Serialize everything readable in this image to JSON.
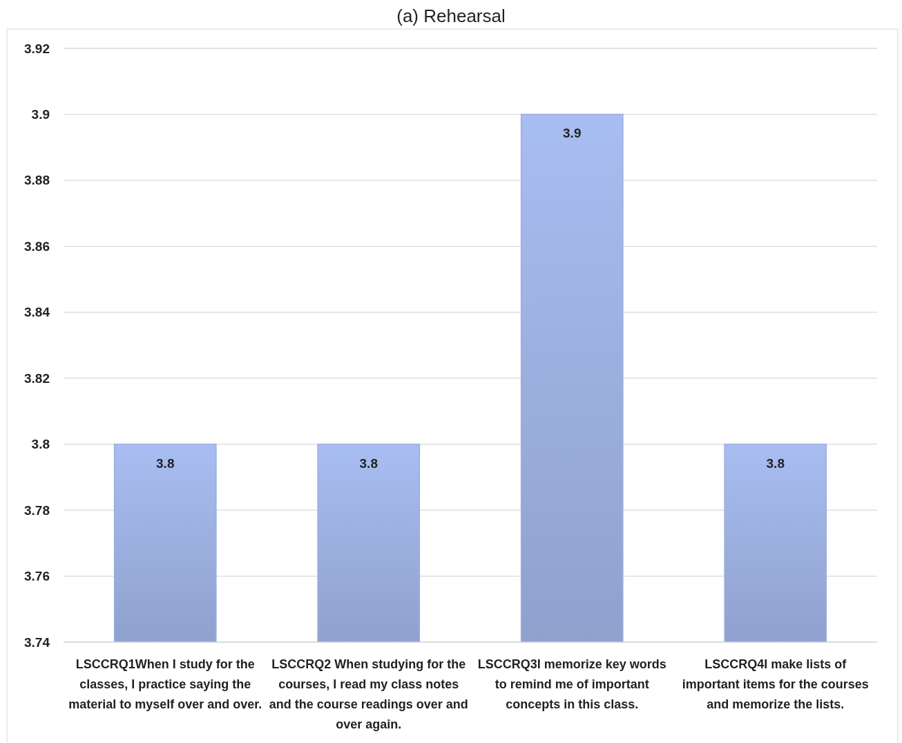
{
  "chart_data": {
    "type": "bar",
    "title": "(a)  Rehearsal",
    "categories": [
      "LSCCRQ1When I study for the classes, I practice saying the material to myself over and over.",
      "LSCCRQ2 When studying for the courses, I read my class notes and the course readings over and over again.",
      "LSCCRQ3I memorize key words to remind me of important concepts in this class.",
      "LSCCRQ4I make lists of important items for the courses and memorize the lists."
    ],
    "values": [
      3.8,
      3.8,
      3.9,
      3.8
    ],
    "color": "#9aaddc",
    "ylim": [
      3.74,
      3.92
    ],
    "yticks": [
      {
        "value": 3.74,
        "label": "3.74"
      },
      {
        "value": 3.76,
        "label": "3.76"
      },
      {
        "value": 3.78,
        "label": "3.78"
      },
      {
        "value": 3.8,
        "label": "3.8"
      },
      {
        "value": 3.82,
        "label": "3.82"
      },
      {
        "value": 3.84,
        "label": "3.84"
      },
      {
        "value": 3.86,
        "label": "3.86"
      },
      {
        "value": 3.88,
        "label": "3.88"
      },
      {
        "value": 3.9,
        "label": "3.9"
      },
      {
        "value": 3.92,
        "label": "3.92"
      }
    ],
    "grid": "y",
    "data_labels": true
  }
}
